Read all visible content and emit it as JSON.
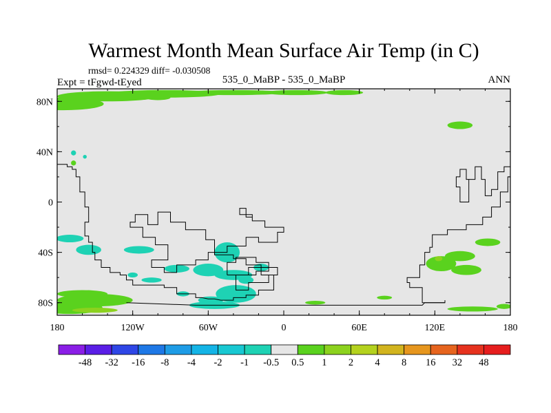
{
  "chart_data": {
    "type": "heatmap",
    "title": "Warmest Month Mean Surface Air Temp (in C)",
    "stats_line": "rmsd= 0.224329 diff= -0.030508",
    "left_label": "Expt = tFgwd-tEyed",
    "center_label": "535_0_MaBP - 535_0_MaBP",
    "right_label": "ANN",
    "x_axis": {
      "range": [
        -180,
        180
      ],
      "ticks": [
        -180,
        -120,
        -60,
        0,
        60,
        120,
        180
      ],
      "tick_labels": [
        "180",
        "120W",
        "60W",
        "0",
        "60E",
        "120E",
        "180"
      ]
    },
    "y_axis": {
      "range": [
        -90,
        90
      ],
      "ticks": [
        80,
        40,
        0,
        -40,
        -80
      ],
      "tick_labels": [
        "80N",
        "40N",
        "0",
        "40S",
        "80S"
      ]
    },
    "background_level": "-0.5 to 0.5",
    "levels": [
      "-48",
      "-32",
      "-16",
      "-8",
      "-4",
      "-2",
      "-1",
      "-0.5",
      "0.5",
      "1",
      "2",
      "4",
      "8",
      "16",
      "32",
      "48"
    ],
    "colorbar_colors": [
      "#8a1ee6",
      "#5a1ee6",
      "#2e46e6",
      "#1e78e6",
      "#1e9ce6",
      "#14b4e6",
      "#18c8d2",
      "#1ed2b4",
      "#e6e6e6",
      "#5ad21e",
      "#8cd21e",
      "#b4d21e",
      "#d2b41e",
      "#e6961e",
      "#e6641e",
      "#e6321e",
      "#e61e1e"
    ],
    "anomaly_regions": [
      {
        "level": "0.5 to 1",
        "lon": -175,
        "lat": 78,
        "rlon": 32,
        "rlat": 5
      },
      {
        "level": "0.5 to 1",
        "lon": -140,
        "lat": 84,
        "rlon": 40,
        "rlat": 4
      },
      {
        "level": "0.5 to 1",
        "lon": -95,
        "lat": 86,
        "rlon": 45,
        "rlat": 3
      },
      {
        "level": "0.5 to 1",
        "lon": -40,
        "lat": 87,
        "rlon": 40,
        "rlat": 2
      },
      {
        "level": "0.5 to 1",
        "lon": 10,
        "lat": 87,
        "rlon": 25,
        "rlat": 2
      },
      {
        "level": "0.5 to 1",
        "lon": 48,
        "lat": 87,
        "rlon": 15,
        "rlat": 2
      },
      {
        "level": "0.5 to 1",
        "lon": -100,
        "lat": 83,
        "rlon": 10,
        "rlat": 2
      },
      {
        "level": "0.5 to 1",
        "lon": 140,
        "lat": 61,
        "rlon": 10,
        "rlat": 3
      },
      {
        "level": "0.5 to 1",
        "lon": -167,
        "lat": 31,
        "rlon": 2,
        "rlat": 2
      },
      {
        "level": "0.5 to 1",
        "lon": -170,
        "lat": -84,
        "rlon": 26,
        "rlat": 5
      },
      {
        "level": "0.5 to 1",
        "lon": -150,
        "lat": -78,
        "rlon": 30,
        "rlat": 5
      },
      {
        "level": "0.5 to 1",
        "lon": -160,
        "lat": -73,
        "rlon": 20,
        "rlat": 3
      },
      {
        "level": "0.5 to 1",
        "lon": 25,
        "lat": -80,
        "rlon": 8,
        "rlat": 1.5
      },
      {
        "level": "0.5 to 1",
        "lon": 80,
        "lat": -76,
        "rlon": 6,
        "rlat": 1.5
      },
      {
        "level": "0.5 to 1",
        "lon": 125,
        "lat": -49,
        "rlon": 12,
        "rlat": 6
      },
      {
        "level": "0.5 to 1",
        "lon": 140,
        "lat": -43,
        "rlon": 12,
        "rlat": 4
      },
      {
        "level": "0.5 to 1",
        "lon": 145,
        "lat": -54,
        "rlon": 12,
        "rlat": 4
      },
      {
        "level": "0.5 to 1",
        "lon": 162,
        "lat": -32,
        "rlon": 10,
        "rlat": 3
      },
      {
        "level": "0.5 to 1",
        "lon": 150,
        "lat": -85,
        "rlon": 20,
        "rlat": 2
      },
      {
        "level": "0.5 to 1",
        "lon": 175,
        "lat": -83,
        "rlon": 6,
        "rlat": 2
      },
      {
        "level": "1 to 2",
        "lon": 123,
        "lat": -45,
        "rlon": 3,
        "rlat": 2
      },
      {
        "level": "1 to 2",
        "lon": -150,
        "lat": -86,
        "rlon": 18,
        "rlat": 2
      },
      {
        "level": "1 to 2",
        "lon": -41,
        "lat": -70,
        "rlon": 1.5,
        "rlat": 2
      },
      {
        "level": "-1 to -0.5",
        "lon": -170,
        "lat": -29,
        "rlon": 11,
        "rlat": 3
      },
      {
        "level": "-1 to -0.5",
        "lon": -155,
        "lat": -38,
        "rlon": 10,
        "rlat": 4
      },
      {
        "level": "-1 to -0.5",
        "lon": -115,
        "lat": -38,
        "rlon": 12,
        "rlat": 3
      },
      {
        "level": "-1 to -0.5",
        "lon": -105,
        "lat": -62,
        "rlon": 8,
        "rlat": 2
      },
      {
        "level": "-1 to -0.5",
        "lon": -85,
        "lat": -53,
        "rlon": 10,
        "rlat": 3
      },
      {
        "level": "-1 to -0.5",
        "lon": -60,
        "lat": -54,
        "rlon": 12,
        "rlat": 5
      },
      {
        "level": "-1 to -0.5",
        "lon": -45,
        "lat": -40,
        "rlon": 10,
        "rlat": 8
      },
      {
        "level": "-1 to -0.5",
        "lon": -40,
        "lat": -58,
        "rlon": 15,
        "rlat": 4
      },
      {
        "level": "-1 to -0.5",
        "lon": -55,
        "lat": -82,
        "rlon": 20,
        "rlat": 3
      },
      {
        "level": "-1 to -0.5",
        "lon": -38,
        "lat": -73,
        "rlon": 16,
        "rlat": 7
      },
      {
        "level": "-1 to -0.5",
        "lon": -58,
        "lat": -78,
        "rlon": 10,
        "rlat": 3
      },
      {
        "level": "-1 to -0.5",
        "lon": -18,
        "lat": -52,
        "rlon": 6,
        "rlat": 3
      },
      {
        "level": "-1 to -0.5",
        "lon": -80,
        "lat": -73,
        "rlon": 5,
        "rlat": 2
      },
      {
        "level": "-1 to -0.5",
        "lon": -30,
        "lat": -62,
        "rlon": 6,
        "rlat": 3
      },
      {
        "level": "-1 to -0.5",
        "lon": -167,
        "lat": 39,
        "rlon": 2,
        "rlat": 2
      },
      {
        "level": "-1 to -0.5",
        "lon": -158,
        "lat": 36,
        "rlon": 1.5,
        "rlat": 1.5
      },
      {
        "level": "-1 to -0.5",
        "lon": -120,
        "lat": -58,
        "rlon": 4,
        "rlat": 2
      }
    ],
    "coastlines": [
      {
        "name": "north-america-west",
        "points": [
          [
            -180,
            30
          ],
          [
            -172,
            30
          ],
          [
            -172,
            28
          ],
          [
            -168,
            28
          ],
          [
            -168,
            26
          ],
          [
            -165,
            26
          ],
          [
            -165,
            20
          ],
          [
            -162,
            20
          ],
          [
            -162,
            8
          ],
          [
            -158,
            8
          ],
          [
            -158,
            -4
          ],
          [
            -155,
            -4
          ],
          [
            -155,
            -16
          ],
          [
            -158,
            -16
          ],
          [
            -158,
            -27
          ],
          [
            -155,
            -27
          ],
          [
            -155,
            -32
          ],
          [
            -152,
            -32
          ],
          [
            -152,
            -40
          ],
          [
            -150,
            -40
          ],
          [
            -150,
            -46
          ],
          [
            -145,
            -46
          ],
          [
            -145,
            -52
          ],
          [
            -138,
            -52
          ],
          [
            -138,
            -56
          ],
          [
            -130,
            -56
          ],
          [
            -130,
            -58
          ],
          [
            -125,
            -58
          ],
          [
            -125,
            -62
          ],
          [
            -120,
            -62
          ],
          [
            -120,
            -66
          ],
          [
            -95,
            -66
          ],
          [
            -95,
            -68
          ],
          [
            -85,
            -68
          ],
          [
            -85,
            -73
          ],
          [
            -70,
            -73
          ],
          [
            -70,
            -76
          ],
          [
            -65,
            -76
          ],
          [
            -60,
            -77
          ],
          [
            -55,
            -77
          ],
          [
            -50,
            -78
          ],
          [
            -40,
            -78
          ],
          [
            -40,
            -76
          ],
          [
            -30,
            -76
          ],
          [
            -30,
            -74
          ],
          [
            -20,
            -74
          ],
          [
            -20,
            -70
          ],
          [
            -8,
            -70
          ],
          [
            -8,
            -58
          ],
          [
            -18,
            -58
          ],
          [
            -18,
            -50
          ],
          [
            -30,
            -50
          ],
          [
            -30,
            -45
          ],
          [
            -40,
            -45
          ],
          [
            -40,
            -42
          ],
          [
            -55,
            -42
          ],
          [
            -55,
            -30
          ],
          [
            -62,
            -30
          ],
          [
            -62,
            -22
          ],
          [
            -78,
            -22
          ],
          [
            -78,
            -16
          ],
          [
            -90,
            -16
          ],
          [
            -90,
            -8
          ],
          [
            -100,
            -8
          ],
          [
            -100,
            -18
          ],
          [
            -108,
            -18
          ],
          [
            -108,
            -10
          ],
          [
            -118,
            -10
          ],
          [
            -118,
            -16
          ],
          [
            -122,
            -16
          ],
          [
            -122,
            -20
          ],
          [
            -112,
            -20
          ],
          [
            -112,
            -28
          ],
          [
            -102,
            -28
          ],
          [
            -102,
            -34
          ],
          [
            -92,
            -34
          ],
          [
            -92,
            -46
          ],
          [
            -105,
            -46
          ],
          [
            -105,
            -52
          ],
          [
            -95,
            -52
          ],
          [
            -95,
            -56
          ],
          [
            -85,
            -56
          ],
          [
            -85,
            -50
          ],
          [
            -70,
            -50
          ],
          [
            -70,
            -46
          ],
          [
            -60,
            -46
          ],
          [
            -60,
            -40
          ],
          [
            -45,
            -40
          ],
          [
            -45,
            -35
          ],
          [
            -30,
            -35
          ],
          [
            -30,
            -28
          ],
          [
            -20,
            -28
          ],
          [
            -20,
            -32
          ],
          [
            -5,
            -32
          ],
          [
            -5,
            -24
          ],
          [
            0,
            -24
          ],
          [
            0,
            -20
          ],
          [
            -15,
            -20
          ],
          [
            -15,
            -15
          ],
          [
            -25,
            -15
          ],
          [
            -25,
            -10
          ],
          [
            -35,
            -10
          ],
          [
            -35,
            -5
          ],
          [
            -30,
            -5
          ],
          [
            -30,
            -12
          ],
          [
            -25,
            -12
          ]
        ]
      },
      {
        "name": "europe-africa-piece",
        "points": [
          [
            -18,
            -52
          ],
          [
            -5,
            -52
          ],
          [
            -5,
            -58
          ],
          [
            -12,
            -58
          ],
          [
            -12,
            -64
          ],
          [
            -28,
            -64
          ],
          [
            -28,
            -70
          ],
          [
            -38,
            -70
          ],
          [
            -38,
            -58
          ],
          [
            -28,
            -58
          ],
          [
            -28,
            -52
          ],
          [
            -18,
            -52
          ]
        ]
      },
      {
        "name": "inner-island",
        "points": [
          [
            -45,
            -58
          ],
          [
            -22,
            -58
          ],
          [
            -22,
            -55
          ],
          [
            -12,
            -55
          ],
          [
            -12,
            -48
          ],
          [
            -22,
            -48
          ],
          [
            -22,
            -44
          ],
          [
            -38,
            -44
          ],
          [
            -38,
            -48
          ],
          [
            -45,
            -48
          ],
          [
            -45,
            -58
          ]
        ]
      },
      {
        "name": "asia-east-coast",
        "points": [
          [
            128,
            -80
          ],
          [
            110,
            -80
          ],
          [
            110,
            -68
          ],
          [
            100,
            -68
          ],
          [
            100,
            -64
          ],
          [
            98,
            -64
          ],
          [
            98,
            -60
          ],
          [
            108,
            -60
          ],
          [
            108,
            -50
          ],
          [
            112,
            -50
          ],
          [
            112,
            -40
          ],
          [
            116,
            -40
          ],
          [
            116,
            -36
          ],
          [
            118,
            -36
          ],
          [
            118,
            -26
          ],
          [
            130,
            -26
          ],
          [
            130,
            -22
          ],
          [
            145,
            -22
          ],
          [
            145,
            -18
          ],
          [
            158,
            -18
          ],
          [
            158,
            -12
          ],
          [
            165,
            -12
          ],
          [
            165,
            -4
          ],
          [
            172,
            -4
          ],
          [
            172,
            8
          ],
          [
            178,
            8
          ],
          [
            178,
            20
          ],
          [
            180,
            20
          ]
        ]
      },
      {
        "name": "asia-upper",
        "points": [
          [
            180,
            28
          ],
          [
            175,
            28
          ],
          [
            175,
            24
          ],
          [
            170,
            24
          ],
          [
            170,
            10
          ],
          [
            165,
            10
          ],
          [
            165,
            5
          ],
          [
            160,
            5
          ],
          [
            160,
            18
          ],
          [
            157,
            18
          ],
          [
            157,
            28
          ],
          [
            152,
            28
          ],
          [
            152,
            18
          ],
          [
            147,
            18
          ],
          [
            147,
            0
          ],
          [
            140,
            0
          ],
          [
            140,
            12
          ],
          [
            137,
            12
          ],
          [
            137,
            20
          ],
          [
            140,
            20
          ],
          [
            140,
            26
          ],
          [
            145,
            26
          ],
          [
            145,
            18
          ],
          [
            152,
            18
          ]
        ]
      },
      {
        "name": "antarctica-base",
        "points": [
          [
            -125,
            -80
          ],
          [
            -70,
            -82
          ],
          [
            0,
            -82
          ],
          [
            40,
            -82
          ],
          [
            80,
            -82
          ],
          [
            110,
            -82
          ],
          [
            112,
            -80
          ],
          [
            128,
            -80
          ],
          [
            128,
            -78
          ]
        ]
      }
    ]
  }
}
